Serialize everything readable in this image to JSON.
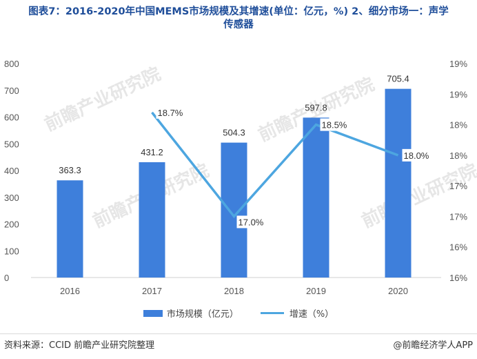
{
  "title": {
    "line1": "图表7：2016-2020年中国MEMS市场规模及其增速(单位：亿元，%) 2、细分市场一：声学",
    "line2": "传感器"
  },
  "chart_data": {
    "type": "bar+line",
    "categories": [
      "2016",
      "2017",
      "2018",
      "2019",
      "2020"
    ],
    "series": [
      {
        "name": "市场规模（亿元）",
        "type": "bar",
        "axis": "left",
        "values": [
          363.3,
          431.2,
          504.3,
          597.8,
          705.4
        ],
        "labels": [
          "363.3",
          "431.2",
          "504.3",
          "597.8",
          "705.4"
        ]
      },
      {
        "name": "增速（%）",
        "type": "line",
        "axis": "right",
        "values": [
          null,
          18.7,
          17.0,
          18.5,
          18.0
        ],
        "labels": [
          "",
          "18.7%",
          "17.0%",
          "18.5%",
          "18.0%"
        ]
      }
    ],
    "left_axis": {
      "ticks": [
        "0",
        "100",
        "200",
        "300",
        "400",
        "500",
        "600",
        "700",
        "800"
      ],
      "min": 0,
      "max": 800
    },
    "right_axis": {
      "ticks": [
        "16%",
        "16%",
        "17%",
        "17%",
        "18%",
        "18%",
        "19%",
        "19%"
      ],
      "min": 16.0,
      "max": 19.5
    },
    "colors": {
      "bar": "#3e7fdb",
      "line": "#4da6e0"
    }
  },
  "legend": {
    "bar_label": "市场规模（亿元）",
    "line_label": "增速（%）"
  },
  "footer": {
    "source": "资料来源：CCID 前瞻产业研究院整理",
    "brand": "@前瞻经济学人APP"
  },
  "watermark": "前瞻产业研究院"
}
